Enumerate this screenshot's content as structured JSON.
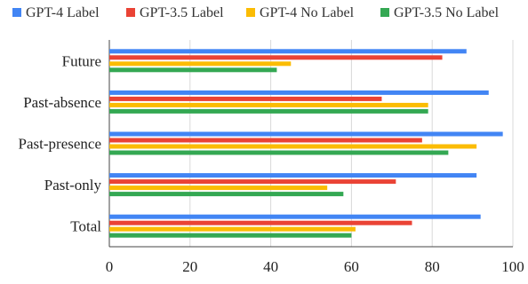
{
  "chart_data": {
    "type": "bar",
    "orientation": "horizontal",
    "categories": [
      "Future",
      "Past-absence",
      "Past-presence",
      "Past-only",
      "Total"
    ],
    "series": [
      {
        "name": "GPT-4 Label",
        "color": "#4285f4",
        "values": [
          88.5,
          94,
          97.5,
          91,
          92
        ]
      },
      {
        "name": "GPT-3.5 Label",
        "color": "#ea4335",
        "values": [
          82.5,
          67.5,
          77.5,
          71,
          75
        ]
      },
      {
        "name": "GPT-4 No Label",
        "color": "#fbbc04",
        "values": [
          45,
          79,
          91,
          54,
          61
        ]
      },
      {
        "name": "GPT-3.5 No Label",
        "color": "#34a853",
        "values": [
          41.5,
          79,
          84,
          58,
          60
        ]
      }
    ],
    "xlim": [
      0,
      100
    ],
    "xticks": [
      0,
      20,
      40,
      60,
      80,
      100
    ],
    "grid": true,
    "legend": "top"
  }
}
